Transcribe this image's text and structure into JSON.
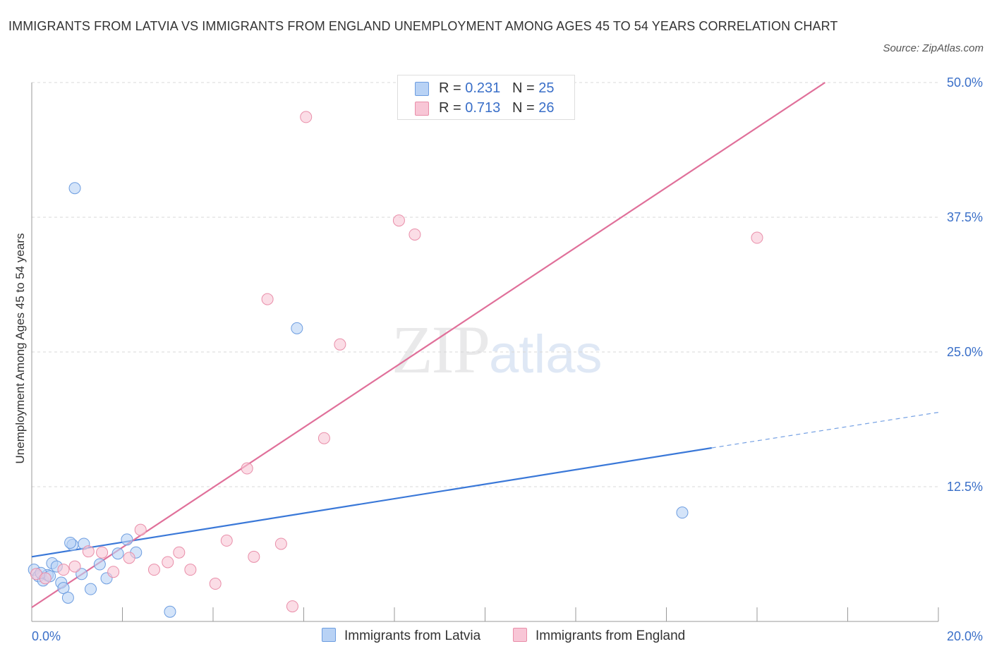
{
  "title": "IMMIGRANTS FROM LATVIA VS IMMIGRANTS FROM ENGLAND UNEMPLOYMENT AMONG AGES 45 TO 54 YEARS CORRELATION CHART",
  "source": "Source: ZipAtlas.com",
  "watermark": {
    "zip": "ZIP",
    "atlas": "atlas"
  },
  "legend_top": [
    {
      "r_label": "R = ",
      "r_value": "0.231",
      "n_label": "N = ",
      "n_value": "25"
    },
    {
      "r_label": "R = ",
      "r_value": "0.713",
      "n_label": "N = ",
      "n_value": "26"
    }
  ],
  "colors": {
    "latvia_fill": "#b8d2f5",
    "latvia_stroke": "#6d9de0",
    "latvia_line": "#3a78d8",
    "england_fill": "#f8c6d6",
    "england_stroke": "#e98ea9",
    "england_line": "#e0709a",
    "grid": "#d8d8d8",
    "tick_label": "#3a6fc8"
  },
  "chart_data": {
    "type": "scatter",
    "title": "IMMIGRANTS FROM LATVIA VS IMMIGRANTS FROM ENGLAND UNEMPLOYMENT AMONG AGES 45 TO 54 YEARS CORRELATION CHART",
    "xlabel": "",
    "ylabel": "Unemployment Among Ages 45 to 54 years",
    "xlim": [
      0,
      20
    ],
    "ylim": [
      0,
      50
    ],
    "x_tick_labels": [
      {
        "value": 0,
        "label": "0.0%"
      },
      {
        "value": 20,
        "label": "20.0%"
      }
    ],
    "y_tick_labels": [
      {
        "value": 12.5,
        "label": "12.5%"
      },
      {
        "value": 25,
        "label": "25.0%"
      },
      {
        "value": 37.5,
        "label": "37.5%"
      },
      {
        "value": 50,
        "label": "50.0%"
      }
    ],
    "grid": true,
    "legend_position": "bottom",
    "series": [
      {
        "name": "Immigrants from Latvia",
        "R": 0.231,
        "N": 25,
        "points": [
          [
            0.05,
            4.8
          ],
          [
            0.15,
            4.2
          ],
          [
            0.25,
            3.8
          ],
          [
            0.35,
            4.3
          ],
          [
            0.45,
            5.4
          ],
          [
            0.55,
            5.1
          ],
          [
            0.65,
            3.6
          ],
          [
            0.7,
            3.1
          ],
          [
            0.8,
            2.2
          ],
          [
            0.9,
            7.1
          ],
          [
            0.85,
            7.3
          ],
          [
            1.1,
            4.4
          ],
          [
            1.15,
            7.2
          ],
          [
            1.3,
            3.0
          ],
          [
            1.5,
            5.3
          ],
          [
            1.65,
            4.0
          ],
          [
            1.9,
            6.3
          ],
          [
            2.1,
            7.6
          ],
          [
            2.3,
            6.4
          ],
          [
            3.05,
            0.9
          ],
          [
            0.95,
            40.2
          ],
          [
            5.85,
            27.2
          ],
          [
            14.35,
            10.1
          ],
          [
            0.2,
            4.5
          ],
          [
            0.4,
            4.2
          ]
        ],
        "trend": {
          "x_start": 0,
          "y_start": 6.0,
          "x_end": 15.0,
          "y_end": 16.1,
          "dashed_to_x": 20,
          "dashed_to_y": 19.4
        }
      },
      {
        "name": "Immigrants from England",
        "R": 0.713,
        "N": 26,
        "points": [
          [
            0.1,
            4.4
          ],
          [
            0.3,
            4.0
          ],
          [
            0.7,
            4.8
          ],
          [
            0.95,
            5.1
          ],
          [
            1.25,
            6.5
          ],
          [
            1.55,
            6.4
          ],
          [
            1.8,
            4.6
          ],
          [
            2.15,
            5.9
          ],
          [
            2.4,
            8.5
          ],
          [
            2.7,
            4.8
          ],
          [
            3.0,
            5.5
          ],
          [
            3.25,
            6.4
          ],
          [
            3.5,
            4.8
          ],
          [
            4.05,
            3.5
          ],
          [
            4.3,
            7.5
          ],
          [
            4.9,
            6.0
          ],
          [
            5.5,
            7.2
          ],
          [
            4.75,
            14.2
          ],
          [
            5.2,
            29.9
          ],
          [
            5.75,
            1.4
          ],
          [
            6.45,
            17.0
          ],
          [
            6.8,
            25.7
          ],
          [
            6.05,
            46.8
          ],
          [
            8.1,
            37.2
          ],
          [
            8.45,
            35.9
          ],
          [
            16.0,
            35.6
          ]
        ],
        "trend": {
          "x_start": 0,
          "y_start": 1.3,
          "x_end": 17.5,
          "y_end": 50.0
        }
      }
    ]
  }
}
